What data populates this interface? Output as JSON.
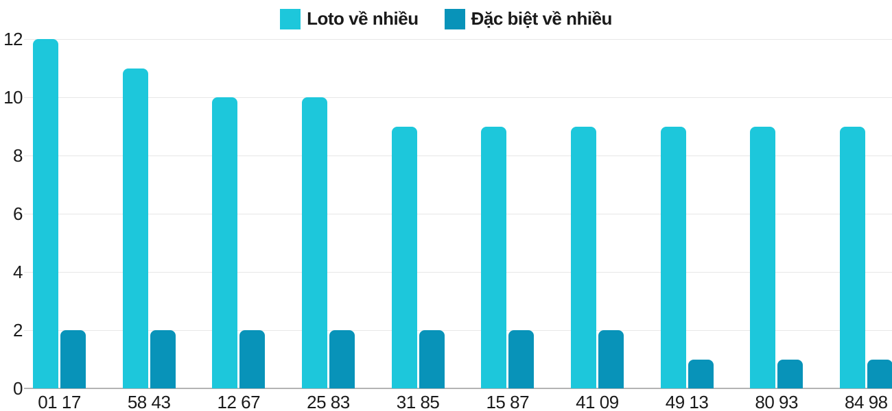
{
  "chart_data": {
    "type": "bar",
    "title": "",
    "categories": [
      "01 17",
      "58 43",
      "12 67",
      "25 83",
      "31 85",
      "15 87",
      "41 09",
      "49 13",
      "80 93",
      "84 98"
    ],
    "series": [
      {
        "name": "Loto về nhiều",
        "color": "#1DC7DB",
        "values": [
          12,
          11,
          10,
          10,
          9,
          9,
          9,
          9,
          9,
          9
        ]
      },
      {
        "name": "Đặc biệt về nhiều",
        "color": "#0893B9",
        "values": [
          2,
          2,
          2,
          2,
          2,
          2,
          2,
          1,
          1,
          1
        ]
      }
    ],
    "yticks": [
      0,
      2,
      4,
      6,
      8,
      10,
      12
    ],
    "ylim": [
      0,
      12
    ],
    "xlabel": "",
    "ylabel": "",
    "grid": true,
    "legend_position": "top",
    "grid_color": "#e7e7e7",
    "baseline_color": "#b3b3b3",
    "text_color": "#1a1a1a",
    "background_color": "#ffffff"
  }
}
